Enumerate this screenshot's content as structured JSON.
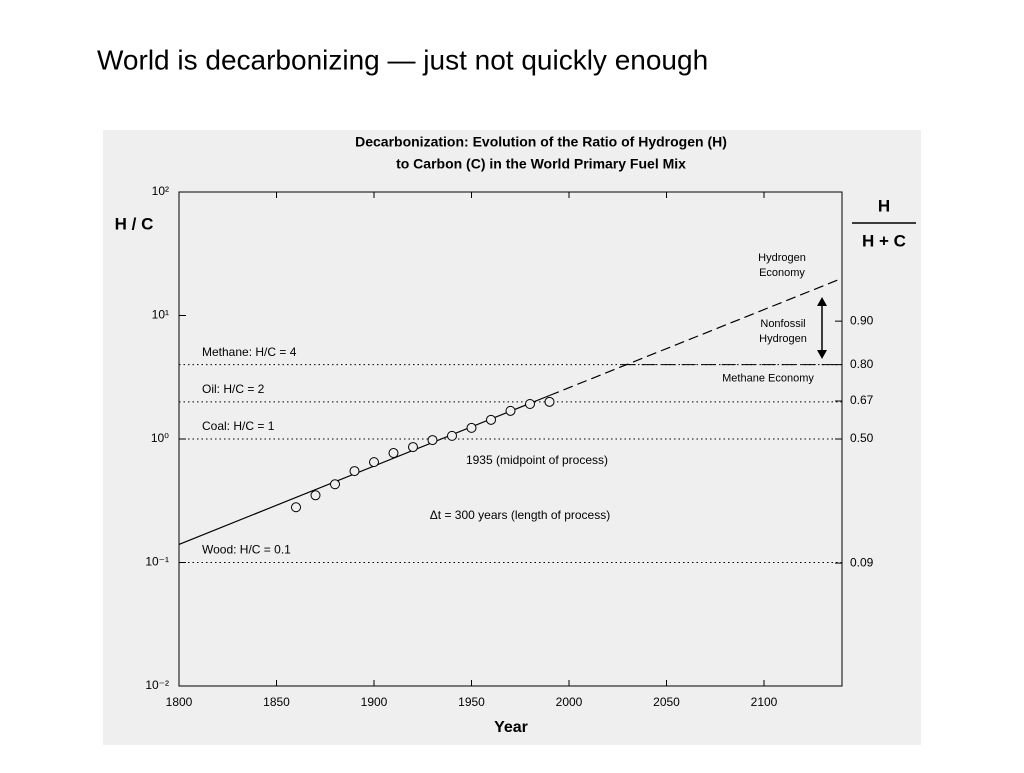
{
  "slide_title": "World is decarbonizing — just not quickly enough",
  "chart_data": {
    "type": "scatter",
    "title": [
      "Decarbonization: Evolution of the Ratio of Hydrogen (H)",
      "to Carbon (C) in the World Primary Fuel Mix"
    ],
    "xlabel": "Year",
    "ylabel": "H / C",
    "y2label": {
      "numerator": "H",
      "denominator": "H + C"
    },
    "xlim": [
      1800,
      2140
    ],
    "xticks": [
      1800,
      1850,
      1900,
      1950,
      2000,
      2050,
      2100
    ],
    "ylim": [
      0.01,
      100
    ],
    "yscale": "log",
    "yticks": [
      {
        "value": 100,
        "label": "10²"
      },
      {
        "value": 10,
        "label": "10¹"
      },
      {
        "value": 1,
        "label": "10⁰"
      },
      {
        "value": 0.1,
        "label": "10⁻¹"
      },
      {
        "value": 0.01,
        "label": "10⁻²"
      }
    ],
    "y2scale": "fraction",
    "y2ticks": [
      {
        "value": 0.9,
        "label": "0.90"
      },
      {
        "value": 0.8,
        "label": "0.80"
      },
      0.67,
      {
        "value": 0.5,
        "label": "0.50"
      },
      0.09
    ],
    "series": [
      {
        "x": [
          1860,
          1870,
          1880,
          1890,
          1900,
          1910,
          1920,
          1930,
          1940,
          1950,
          1960,
          1970,
          1980,
          1990
        ],
        "values": [
          0.28,
          0.35,
          0.43,
          0.55,
          0.65,
          0.77,
          0.86,
          0.98,
          1.06,
          1.23,
          1.43,
          1.69,
          1.92,
          2.0
        ],
        "color": "#000000"
      }
    ],
    "trend": {
      "x": [
        1800,
        1990
      ],
      "values": [
        0.14,
        2.25
      ]
    },
    "trend_projection": {
      "x": [
        1990,
        2140
      ],
      "values": [
        2.25,
        20
      ]
    },
    "reference_lines": [
      {
        "label": "Methane: H/C = 4",
        "value": 4
      },
      {
        "label": "Oil: H/C = 2",
        "value": 2
      },
      {
        "label": "Coal: H/C = 1",
        "value": 1
      },
      {
        "label": "Wood: H/C = 0.1",
        "value": 0.1
      }
    ],
    "methane_economy": {
      "label": "Methane Economy",
      "x": [
        2027,
        2140
      ],
      "values": [
        4,
        4
      ]
    },
    "annotations": {
      "midpoint": "1935 (midpoint of process)",
      "length": "Δt = 300 years (length of process)",
      "hydrogen_economy": [
        "Hydrogen",
        "Economy"
      ],
      "nonfossil": [
        "Nonfossil",
        "Hydrogen"
      ]
    }
  }
}
